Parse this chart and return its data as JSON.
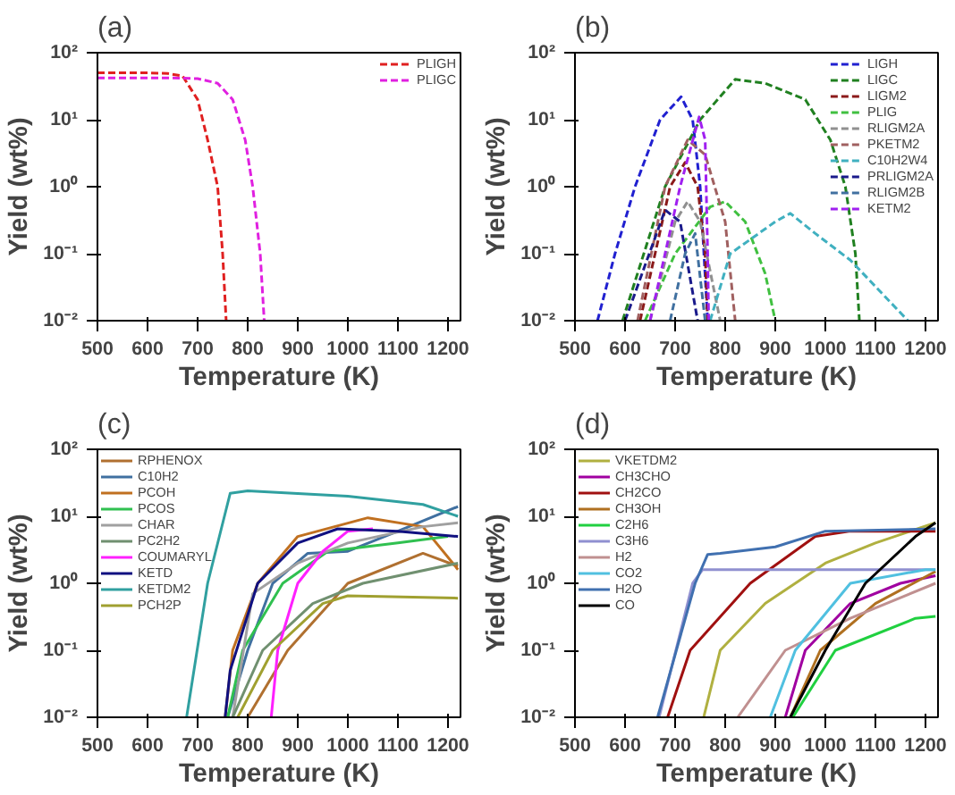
{
  "chart_data": [
    {
      "type": "line",
      "title": "(a)",
      "xlabel": "Temperature (K)",
      "ylabel": "Yield (wt%)",
      "log": "y",
      "legend": "top right",
      "line_style": "dashed",
      "xlim": [
        500,
        1225
      ],
      "ylim": [
        0.01,
        100
      ],
      "xticks": [
        500,
        600,
        700,
        800,
        900,
        1000,
        1100,
        1200
      ],
      "yticks": [
        {
          "value": 0.01,
          "label": "10⁻²"
        },
        {
          "value": 0.1,
          "label": "10⁻¹"
        },
        {
          "value": 1,
          "label": "10⁰"
        },
        {
          "value": 10,
          "label": "10¹"
        },
        {
          "value": 100,
          "label": "10²"
        }
      ],
      "series": [
        {
          "name": "PLIGH",
          "color": "#e02020",
          "x": [
            500,
            600,
            640,
            670,
            700,
            720,
            740,
            750,
            757
          ],
          "values": [
            50,
            50,
            49,
            45,
            20,
            5,
            1,
            0.1,
            0.01
          ]
        },
        {
          "name": "PLIGC",
          "color": "#e020e0",
          "x": [
            500,
            650,
            700,
            740,
            770,
            795,
            810,
            825,
            833
          ],
          "values": [
            42,
            42,
            41,
            35,
            20,
            5,
            1,
            0.1,
            0.01
          ]
        }
      ]
    },
    {
      "type": "line",
      "title": "(b)",
      "xlabel": "Temperature (K)",
      "ylabel": "Yield (wt%)",
      "log": "y",
      "legend": "top right",
      "line_style": "dashed",
      "xlim": [
        500,
        1225
      ],
      "ylim": [
        0.01,
        100
      ],
      "xticks": [
        500,
        600,
        700,
        800,
        900,
        1000,
        1100,
        1200
      ],
      "yticks": [
        {
          "value": 0.01,
          "label": "10⁻²"
        },
        {
          "value": 0.1,
          "label": "10⁻¹"
        },
        {
          "value": 1,
          "label": "10⁰"
        },
        {
          "value": 10,
          "label": "10¹"
        },
        {
          "value": 100,
          "label": "10²"
        }
      ],
      "series": [
        {
          "name": "LIGH",
          "color": "#2020d0",
          "x": [
            545,
            580,
            620,
            670,
            712,
            735,
            750,
            765
          ],
          "values": [
            0.01,
            0.1,
            1,
            10,
            22,
            10,
            1,
            0.01
          ]
        },
        {
          "name": "LIGC",
          "color": "#208020",
          "x": [
            595,
            680,
            750,
            820,
            880,
            960,
            1010,
            1040,
            1060,
            1068
          ],
          "values": [
            0.01,
            1,
            10,
            40,
            35,
            20,
            5,
            1,
            0.1,
            0.01
          ]
        },
        {
          "name": "LIGM2",
          "color": "#8b1a1a",
          "x": [
            630,
            690,
            720,
            745,
            760,
            765
          ],
          "values": [
            0.01,
            1,
            2.3,
            1,
            0.1,
            0.01
          ]
        },
        {
          "name": "PLIG",
          "color": "#40c040",
          "x": [
            640,
            700,
            770,
            800,
            840,
            880,
            900
          ],
          "values": [
            0.01,
            0.1,
            0.5,
            0.6,
            0.3,
            0.05,
            0.01
          ]
        },
        {
          "name": "RLIGM2A",
          "color": "#909090",
          "x": [
            650,
            700,
            725,
            750,
            790
          ],
          "values": [
            0.01,
            0.3,
            0.6,
            0.3,
            0.01
          ]
        },
        {
          "name": "PKETM2",
          "color": "#a06060",
          "x": [
            625,
            680,
            725,
            760,
            800,
            820
          ],
          "values": [
            0.01,
            1,
            5,
            3,
            0.3,
            0.01
          ]
        },
        {
          "name": "C10H2W4",
          "color": "#40b0c0",
          "x": [
            770,
            810,
            900,
            930,
            980,
            1050,
            1165
          ],
          "values": [
            0.01,
            0.1,
            0.3,
            0.4,
            0.2,
            0.08,
            0.01
          ]
        },
        {
          "name": "PRLIGM2A",
          "color": "#1a1a8b",
          "x": [
            600,
            680,
            710,
            745
          ],
          "values": [
            0.01,
            0.45,
            0.3,
            0.01
          ]
        },
        {
          "name": "RLIGM2B",
          "color": "#4070a0",
          "x": [
            690,
            720,
            740,
            760
          ],
          "values": [
            0.01,
            0.1,
            0.2,
            0.01
          ]
        },
        {
          "name": "KETM2",
          "color": "#a020f0",
          "x": [
            650,
            710,
            748,
            760,
            765,
            767
          ],
          "values": [
            0.01,
            1,
            11,
            5,
            0.1,
            0.01
          ]
        }
      ]
    },
    {
      "type": "line",
      "title": "(c)",
      "xlabel": "Temperature (K)",
      "ylabel": "Yield (wt%)",
      "log": "y",
      "legend": "top left",
      "line_style": "solid",
      "xlim": [
        500,
        1225
      ],
      "ylim": [
        0.01,
        100
      ],
      "xticks": [
        500,
        600,
        700,
        800,
        900,
        1000,
        1100,
        1200
      ],
      "yticks": [
        {
          "value": 0.01,
          "label": "10⁻²"
        },
        {
          "value": 0.1,
          "label": "10⁻¹"
        },
        {
          "value": 1,
          "label": "10⁰"
        },
        {
          "value": 10,
          "label": "10¹"
        },
        {
          "value": 100,
          "label": "10²"
        }
      ],
      "series": [
        {
          "name": "RPHENOX",
          "color": "#b07030",
          "x": [
            800,
            880,
            1000,
            1150,
            1220
          ],
          "values": [
            0.01,
            0.1,
            1,
            2.8,
            1.8
          ]
        },
        {
          "name": "C10H2",
          "color": "#4070a0",
          "x": [
            760,
            800,
            850,
            920,
            1000,
            1100,
            1220
          ],
          "values": [
            0.01,
            0.1,
            1,
            2.8,
            3,
            6,
            14
          ]
        },
        {
          "name": "PCOH",
          "color": "#c07020",
          "x": [
            755,
            770,
            820,
            900,
            1040,
            1150,
            1220
          ],
          "values": [
            0.01,
            0.1,
            1,
            5,
            9.5,
            7,
            1.6
          ]
        },
        {
          "name": "PCOS",
          "color": "#30c050",
          "x": [
            760,
            790,
            870,
            960,
            1100,
            1200
          ],
          "values": [
            0.01,
            0.1,
            1,
            3,
            4,
            5
          ]
        },
        {
          "name": "CHAR",
          "color": "#a0a0a0",
          "x": [
            770,
            810,
            900,
            1000,
            1150,
            1220
          ],
          "values": [
            0.01,
            0.7,
            2,
            4,
            7,
            8
          ]
        },
        {
          "name": "PC2H2",
          "color": "#709070",
          "x": [
            770,
            830,
            930,
            1030,
            1220
          ],
          "values": [
            0.01,
            0.1,
            0.5,
            1,
            2
          ]
        },
        {
          "name": "COUMARYL",
          "color": "#ff20ff",
          "x": [
            847,
            860,
            900,
            950,
            1000,
            1050
          ],
          "values": [
            0.01,
            0.1,
            1,
            3,
            6,
            6.5
          ]
        },
        {
          "name": "KETD",
          "color": "#101080",
          "x": [
            755,
            765,
            820,
            900,
            980,
            1100,
            1220
          ],
          "values": [
            0.01,
            0.05,
            1,
            4,
            6.5,
            6,
            5
          ]
        },
        {
          "name": "KETDM2",
          "color": "#30a0a0",
          "x": [
            678,
            720,
            765,
            800,
            1000,
            1150,
            1220
          ],
          "values": [
            0.01,
            1,
            22,
            24,
            20,
            15,
            10
          ]
        },
        {
          "name": "PCH2P",
          "color": "#a0a030",
          "x": [
            780,
            850,
            950,
            1000,
            1220
          ],
          "values": [
            0.01,
            0.1,
            0.5,
            0.65,
            0.6
          ]
        }
      ]
    },
    {
      "type": "line",
      "title": "(d)",
      "xlabel": "Temperature (K)",
      "ylabel": "Yield (wt%)",
      "log": "y",
      "legend": "top left",
      "line_style": "solid",
      "xlim": [
        500,
        1225
      ],
      "ylim": [
        0.01,
        100
      ],
      "xticks": [
        500,
        600,
        700,
        800,
        900,
        1000,
        1100,
        1200
      ],
      "yticks": [
        {
          "value": 0.01,
          "label": "10⁻²"
        },
        {
          "value": 0.1,
          "label": "10⁻¹"
        },
        {
          "value": 1,
          "label": "10⁰"
        },
        {
          "value": 10,
          "label": "10¹"
        },
        {
          "value": 100,
          "label": "10²"
        }
      ],
      "series": [
        {
          "name": "VKETDM2",
          "color": "#b0b040",
          "x": [
            757,
            790,
            880,
            1000,
            1100,
            1220
          ],
          "values": [
            0.01,
            0.1,
            0.5,
            2,
            4,
            8
          ]
        },
        {
          "name": "CH3CHO",
          "color": "#a000a0",
          "x": [
            920,
            960,
            1050,
            1150,
            1220
          ],
          "values": [
            0.01,
            0.1,
            0.5,
            1,
            1.3
          ]
        },
        {
          "name": "CH2CO",
          "color": "#a01010",
          "x": [
            685,
            730,
            850,
            980,
            1050,
            1220
          ],
          "values": [
            0.01,
            0.1,
            1,
            5,
            6,
            6
          ]
        },
        {
          "name": "CH3OH",
          "color": "#b07020",
          "x": [
            930,
            990,
            1100,
            1220
          ],
          "values": [
            0.01,
            0.1,
            0.5,
            1.5
          ]
        },
        {
          "name": "C2H6",
          "color": "#20d040",
          "x": [
            935,
            1020,
            1180,
            1220
          ],
          "values": [
            0.01,
            0.1,
            0.3,
            0.32
          ]
        },
        {
          "name": "C3H6",
          "color": "#9090d0",
          "x": [
            668,
            735,
            755,
            1220
          ],
          "values": [
            0.01,
            1,
            1.6,
            1.6
          ]
        },
        {
          "name": "H2",
          "color": "#c09090",
          "x": [
            825,
            920,
            1050,
            1220
          ],
          "values": [
            0.01,
            0.1,
            0.3,
            1
          ]
        },
        {
          "name": "CO2",
          "color": "#50c0e0",
          "x": [
            890,
            940,
            1050,
            1200,
            1220
          ],
          "values": [
            0.01,
            0.1,
            1,
            1.6,
            1.6
          ]
        },
        {
          "name": "H2O",
          "color": "#4070b0",
          "x": [
            665,
            740,
            765,
            790,
            900,
            1000,
            1220
          ],
          "values": [
            0.01,
            1,
            2.7,
            2.8,
            3.5,
            6,
            6.5
          ]
        },
        {
          "name": "CO",
          "color": "#000000",
          "x": [
            930,
            1000,
            1080,
            1180,
            1220
          ],
          "values": [
            0.01,
            0.1,
            1,
            5,
            8
          ]
        }
      ]
    }
  ]
}
